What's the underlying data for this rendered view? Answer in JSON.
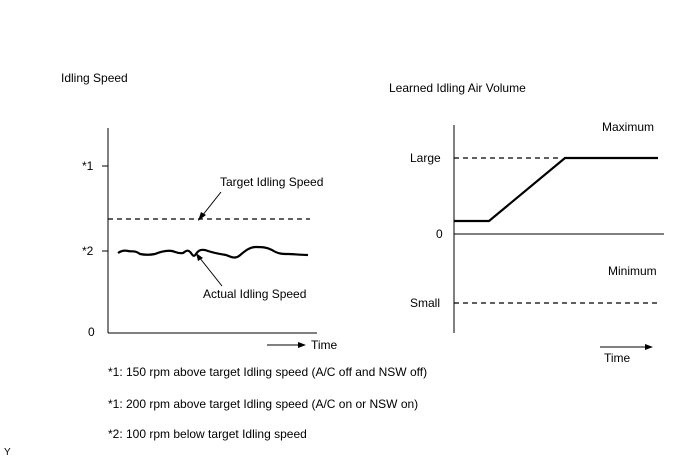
{
  "left_chart": {
    "title": "Idling Speed",
    "y_ticks": [
      "*1",
      "*2",
      "0"
    ],
    "x_label": "Time",
    "target_label": "Target Idling Speed",
    "actual_label": "Actual Idling Speed"
  },
  "right_chart": {
    "title": "Learned Idling Air Volume",
    "y_labels": [
      "Large",
      "0",
      "Small"
    ],
    "maximum_label": "Maximum",
    "minimum_label": "Minimum",
    "x_label": "Time"
  },
  "notes": [
    "*1: 150 rpm above target Idling speed (A/C off and NSW off)",
    "*1: 200 rpm above target Idling speed (A/C on or NSW on)",
    "*2: 100 rpm below target Idling speed"
  ],
  "corner_mark": "Y"
}
